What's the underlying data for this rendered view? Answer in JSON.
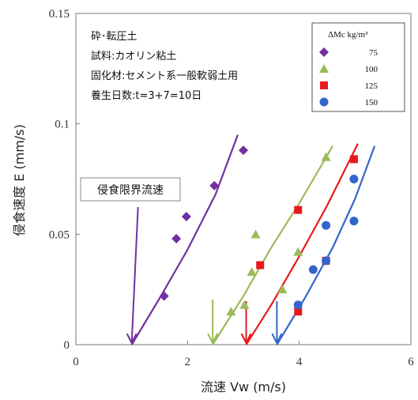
{
  "chart_data": {
    "type": "scatter",
    "xlabel": "流速 Vw (m/s)",
    "ylabel": "侵食速度 E (mm/s)",
    "xlim": [
      0,
      6
    ],
    "ylim": [
      0,
      0.15
    ],
    "x_ticks": [
      "0",
      "2",
      "4",
      "6"
    ],
    "y_ticks": [
      "0",
      "0.05",
      "0.1",
      "0.15"
    ],
    "grid": false,
    "legend_title": "ΔMc kg/m³",
    "legend_position": "top-right",
    "notes": [
      "砕･転圧土",
      "試料:カオリン粘土",
      "固化材:セメント系一般軟弱土用",
      "養生日数:t=3+7=10日"
    ],
    "critical_label": "侵食限界流速",
    "series": [
      {
        "name": "75",
        "marker": "diamond",
        "color": "#7030A0",
        "points": [
          [
            1.58,
            0.022
          ],
          [
            1.8,
            0.048
          ],
          [
            1.98,
            0.058
          ],
          [
            2.48,
            0.072
          ],
          [
            3.0,
            0.088
          ]
        ],
        "fit": [
          [
            1.0,
            0.0
          ],
          [
            1.5,
            0.021
          ],
          [
            2.0,
            0.043
          ],
          [
            2.5,
            0.068
          ],
          [
            2.9,
            0.095
          ]
        ],
        "critical_velocity": 1.0
      },
      {
        "name": "100",
        "marker": "triangle",
        "color": "#9BBB59",
        "points": [
          [
            2.78,
            0.015
          ],
          [
            3.02,
            0.018
          ],
          [
            3.15,
            0.033
          ],
          [
            3.22,
            0.05
          ],
          [
            3.7,
            0.025
          ],
          [
            3.98,
            0.042
          ],
          [
            4.48,
            0.085
          ]
        ],
        "fit": [
          [
            2.45,
            0.0
          ],
          [
            3.0,
            0.022
          ],
          [
            3.5,
            0.044
          ],
          [
            4.0,
            0.064
          ],
          [
            4.6,
            0.09
          ]
        ],
        "critical_velocity": 2.45
      },
      {
        "name": "125",
        "marker": "square",
        "color": "#E8191E",
        "points": [
          [
            3.3,
            0.036
          ],
          [
            3.98,
            0.061
          ],
          [
            3.98,
            0.015
          ],
          [
            4.48,
            0.038
          ],
          [
            4.98,
            0.084
          ]
        ],
        "fit": [
          [
            3.05,
            0.0
          ],
          [
            3.5,
            0.018
          ],
          [
            4.0,
            0.04
          ],
          [
            4.5,
            0.063
          ],
          [
            5.05,
            0.091
          ]
        ],
        "critical_velocity": 3.05
      },
      {
        "name": "150",
        "marker": "circle",
        "color": "#3366CC",
        "points": [
          [
            3.98,
            0.018
          ],
          [
            4.25,
            0.034
          ],
          [
            4.48,
            0.054
          ],
          [
            4.48,
            0.038
          ],
          [
            4.98,
            0.056
          ],
          [
            4.98,
            0.075
          ]
        ],
        "fit": [
          [
            3.6,
            0.0
          ],
          [
            4.1,
            0.021
          ],
          [
            4.6,
            0.044
          ],
          [
            5.0,
            0.066
          ],
          [
            5.35,
            0.09
          ]
        ],
        "critical_velocity": 3.6
      }
    ]
  }
}
